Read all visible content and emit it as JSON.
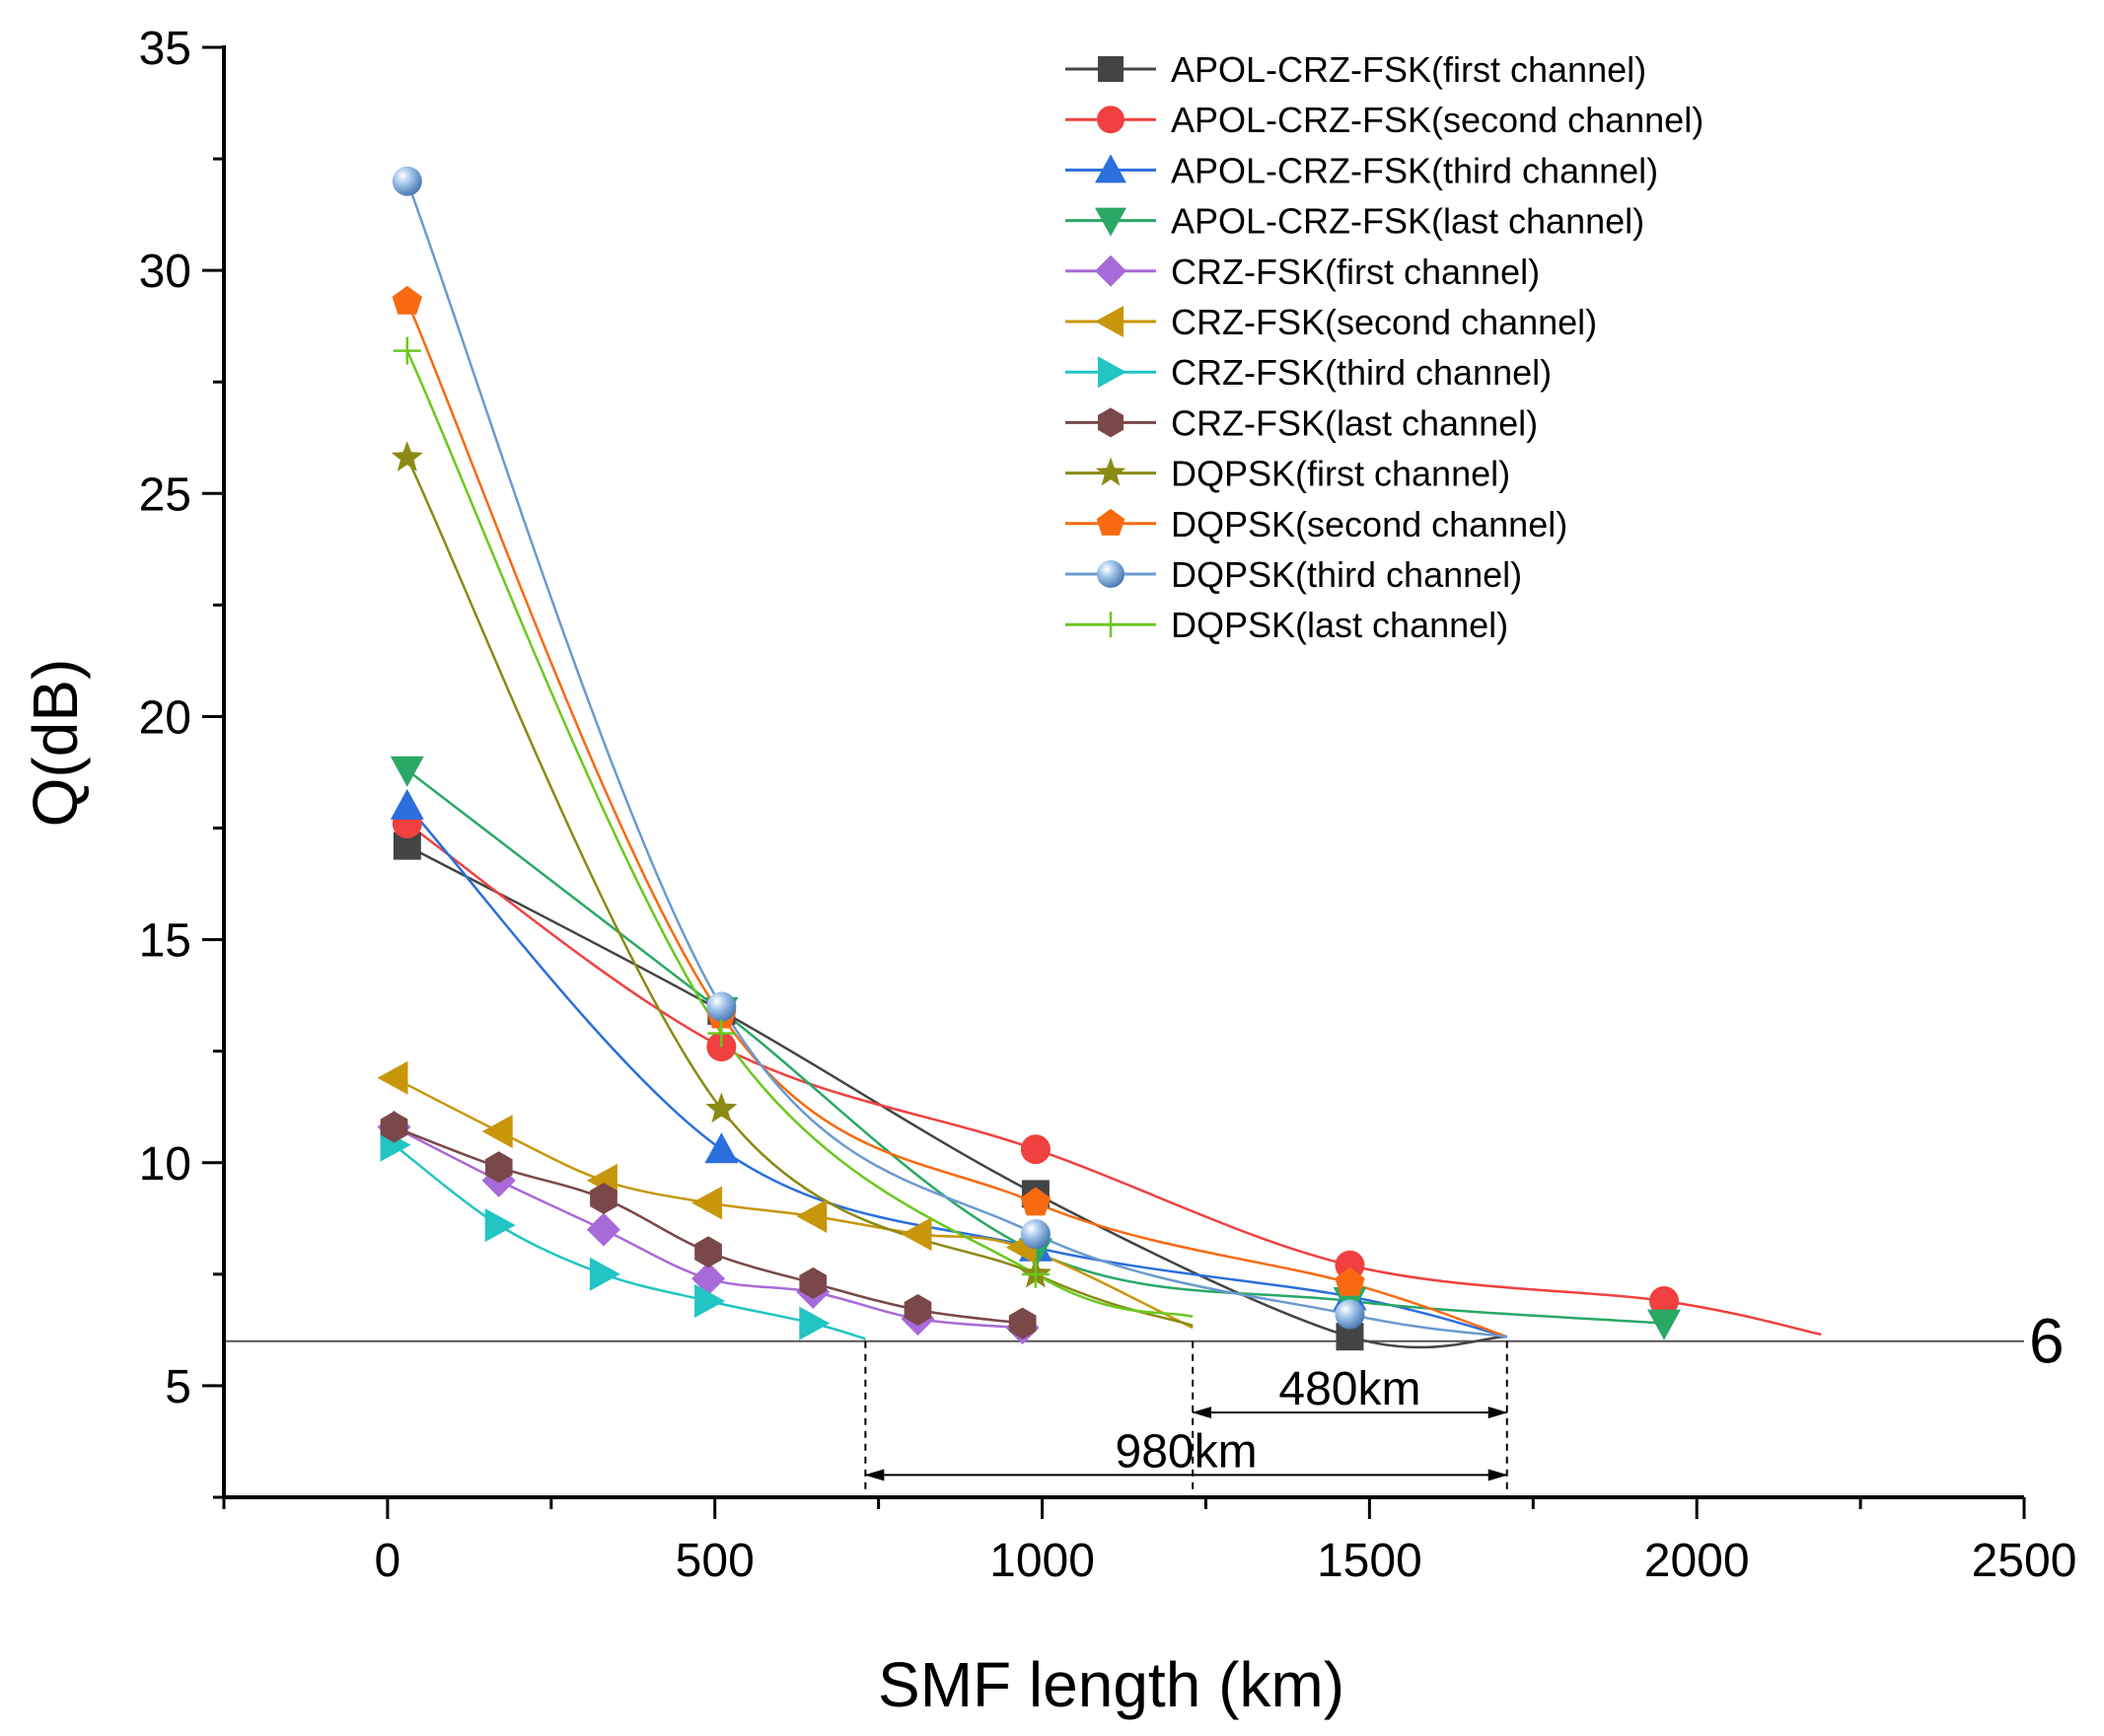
{
  "chart_data": {
    "type": "line",
    "xlabel": "SMF length (km)",
    "ylabel": "Q(dB)",
    "xlim": [
      -250,
      2500
    ],
    "ylim": [
      2.5,
      35
    ],
    "x_ticks": [
      0,
      500,
      1000,
      1500,
      2000,
      2500
    ],
    "x_tick_labels": [
      "0",
      "500",
      "1000",
      "1500",
      "2000",
      "2500"
    ],
    "y_ticks": [
      5,
      10,
      15,
      20,
      25,
      30,
      35
    ],
    "y_tick_labels": [
      "5",
      "10",
      "15",
      "20",
      "25",
      "30",
      "35"
    ],
    "legend_position": "top-right",
    "threshold": {
      "value": 6,
      "label": "6"
    },
    "series": [
      {
        "name": "APOL-CRZ-FSK(first channel)",
        "color": "#444444",
        "marker": "square",
        "x": [
          30,
          510,
          990,
          1470
        ],
        "y": [
          17.1,
          13.4,
          9.3,
          6.1
        ],
        "line_end": [
          1710,
          6.1
        ]
      },
      {
        "name": "APOL-CRZ-FSK(second channel)",
        "color": "#f04040",
        "marker": "circle",
        "x": [
          30,
          510,
          990,
          1470,
          1950
        ],
        "y": [
          17.6,
          12.6,
          10.3,
          7.7,
          6.9
        ],
        "line_end": [
          2190,
          6.15
        ]
      },
      {
        "name": "APOL-CRZ-FSK(third channel)",
        "color": "#2a6fdb",
        "marker": "triangle-up",
        "x": [
          30,
          510,
          990,
          1470
        ],
        "y": [
          18.0,
          10.3,
          8.1,
          7.0
        ],
        "line_end": [
          1710,
          6.1
        ]
      },
      {
        "name": "APOL-CRZ-FSK(last channel)",
        "color": "#2aa866",
        "marker": "triangle-down",
        "x": [
          30,
          510,
          990,
          1470,
          1950
        ],
        "y": [
          18.8,
          13.4,
          8.0,
          6.9,
          6.4
        ]
      },
      {
        "name": "CRZ-FSK(first channel)",
        "color": "#a86ad8",
        "marker": "diamond",
        "x": [
          10,
          170,
          330,
          490,
          650,
          810,
          970
        ],
        "y": [
          10.8,
          9.6,
          8.5,
          7.4,
          7.1,
          6.5,
          6.3
        ]
      },
      {
        "name": "CRZ-FSK(second channel)",
        "color": "#c8960a",
        "marker": "triangle-left",
        "x": [
          10,
          170,
          330,
          490,
          650,
          810,
          970
        ],
        "y": [
          11.9,
          10.7,
          9.6,
          9.1,
          8.8,
          8.4,
          8.1
        ],
        "line_end": [
          1230,
          6.3
        ]
      },
      {
        "name": "CRZ-FSK(third channel)",
        "color": "#22c4c4",
        "marker": "triangle-right",
        "x": [
          10,
          170,
          330,
          490,
          650
        ],
        "y": [
          10.4,
          8.6,
          7.5,
          6.9,
          6.4
        ],
        "line_end": [
          730,
          6.05
        ]
      },
      {
        "name": "CRZ-FSK(last channel)",
        "color": "#7a4848",
        "marker": "hexagon",
        "x": [
          10,
          170,
          330,
          490,
          650,
          810,
          970
        ],
        "y": [
          10.8,
          9.9,
          9.2,
          8.0,
          7.3,
          6.7,
          6.4
        ]
      },
      {
        "name": "DQPSK(first channel)",
        "color": "#8a8a14",
        "marker": "star",
        "x": [
          30,
          510,
          990
        ],
        "y": [
          25.8,
          11.2,
          7.5
        ],
        "line_end": [
          1230,
          6.35
        ]
      },
      {
        "name": "DQPSK(second channel)",
        "color": "#f86a10",
        "marker": "pentagon",
        "x": [
          30,
          510,
          990,
          1470
        ],
        "y": [
          29.3,
          13.3,
          9.1,
          7.3
        ],
        "line_end": [
          1710,
          6.1
        ]
      },
      {
        "name": "DQPSK(third channel)",
        "color": "#6a9ad0",
        "marker": "sphere",
        "x": [
          30,
          510,
          990,
          1470
        ],
        "y": [
          32.0,
          13.5,
          8.4,
          6.6
        ],
        "line_end": [
          1710,
          6.1
        ]
      },
      {
        "name": "DQPSK(last channel)",
        "color": "#6ac81e",
        "marker": "plus",
        "x": [
          30,
          510,
          990
        ],
        "y": [
          28.2,
          12.9,
          7.5
        ],
        "line_end": [
          1230,
          6.55
        ]
      }
    ],
    "annotations": [
      {
        "label": "480km",
        "x_from": 1230,
        "x_to": 1710,
        "y": 4.4
      },
      {
        "label": "980km",
        "x_from": 730,
        "x_to": 1710,
        "y": 3.0
      }
    ],
    "dashed_markers_x": [
      730,
      1230,
      1710
    ]
  }
}
